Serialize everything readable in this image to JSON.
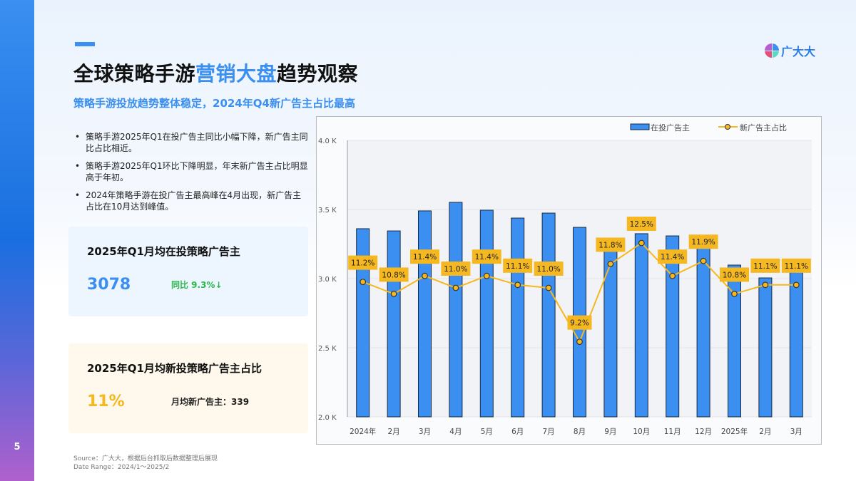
{
  "page": {
    "page_number": "5",
    "title_prefix": "全球策略手游",
    "title_highlight": "营销大盘",
    "title_suffix": "趋势观察",
    "subtitle": "策略手游投放趋势整体稳定，2024年Q4新广告主占比最高",
    "logo_text": "广大大"
  },
  "bullets": [
    "策略手游2025年Q1在投广告主同比小幅下降，新广告主同比占比相近。",
    "策略手游2025年Q1环比下降明显，年末新广告主占比明显高于年初。",
    "2024年策略手游在投广告主最高峰在4月出现，新广告主占比在10月达到峰值。"
  ],
  "cards": [
    {
      "title": "2025年Q1月均在投策略广告主",
      "value": "3078",
      "note": "同比 9.3%↓"
    },
    {
      "title": "2025年Q1月均新投策略广告主占比",
      "value": "11%",
      "note": "月均新广告主：339"
    }
  ],
  "source": {
    "line1": "Source：广大大，根据后台抓取后数据整理后展现",
    "line2": "Date Range：2024/1～2025/2"
  },
  "colors": {
    "bar": "#3a8ff0",
    "line": "#f5b820",
    "accent": "#3a8ff0"
  },
  "chart_data": {
    "type": "bar",
    "title": "",
    "xlabel": "",
    "ylabel": "",
    "ylim": [
      2000,
      4000
    ],
    "yticks": [
      "2.0 K",
      "2.5 K",
      "3.0 K",
      "3.5 K",
      "4.0 K"
    ],
    "grid": true,
    "legend_position": "top-right",
    "categories": [
      "2024年",
      "2月",
      "3月",
      "4月",
      "5月",
      "6月",
      "7月",
      "8月",
      "9月",
      "10月",
      "11月",
      "12月",
      "2025年",
      "2月",
      "3月"
    ],
    "series": [
      {
        "name": "在投广告主",
        "type": "bar",
        "values": [
          3361,
          3345,
          3490,
          3552,
          3495,
          3438,
          3474,
          3371,
          3232,
          3325,
          3309,
          3273,
          3098,
          3005,
          3129
        ]
      },
      {
        "name": "新广告主占比",
        "type": "line",
        "values": [
          11.2,
          10.8,
          11.4,
          11.0,
          11.4,
          11.1,
          11.0,
          9.2,
          11.8,
          12.5,
          11.4,
          11.9,
          10.8,
          11.1,
          11.1
        ],
        "labels": [
          "11.2%",
          "10.8%",
          "11.4%",
          "11.0%",
          "11.4%",
          "11.1%",
          "11.0%",
          "9.2%",
          "11.8%",
          "12.5%",
          "11.4%",
          "11.9%",
          "10.8%",
          "11.1%",
          "11.1%"
        ]
      }
    ]
  }
}
